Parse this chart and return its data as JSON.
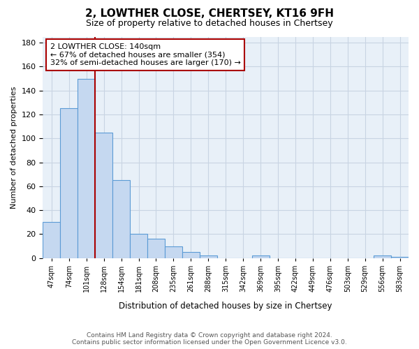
{
  "title": "2, LOWTHER CLOSE, CHERTSEY, KT16 9FH",
  "subtitle": "Size of property relative to detached houses in Chertsey",
  "xlabel": "Distribution of detached houses by size in Chertsey",
  "ylabel": "Number of detached properties",
  "footer_line1": "Contains HM Land Registry data © Crown copyright and database right 2024.",
  "footer_line2": "Contains public sector information licensed under the Open Government Licence v3.0.",
  "categories": [
    "47sqm",
    "74sqm",
    "101sqm",
    "128sqm",
    "154sqm",
    "181sqm",
    "208sqm",
    "235sqm",
    "261sqm",
    "288sqm",
    "315sqm",
    "342sqm",
    "369sqm",
    "395sqm",
    "422sqm",
    "449sqm",
    "476sqm",
    "503sqm",
    "529sqm",
    "556sqm",
    "583sqm"
  ],
  "bar_heights": [
    30,
    125,
    150,
    105,
    65,
    20,
    16,
    10,
    5,
    2,
    0,
    0,
    2,
    0,
    0,
    0,
    0,
    0,
    0,
    2,
    1
  ],
  "bar_color": "#c5d8f0",
  "bar_edge_color": "#5b9bd5",
  "red_line_x": 2.5,
  "annotation_line1": "2 LOWTHER CLOSE: 140sqm",
  "annotation_line2": "← 67% of detached houses are smaller (354)",
  "annotation_line3": "32% of semi-detached houses are larger (170) →",
  "ylim": [
    0,
    185
  ],
  "background_color": "#ffffff",
  "plot_bg_color": "#e8f0f8",
  "grid_color": "#c8d4e3",
  "title_fontsize": 11,
  "subtitle_fontsize": 9,
  "annotation_box_facecolor": "#ffffff",
  "annotation_box_edgecolor": "#aa0000",
  "footer_color": "#555555"
}
